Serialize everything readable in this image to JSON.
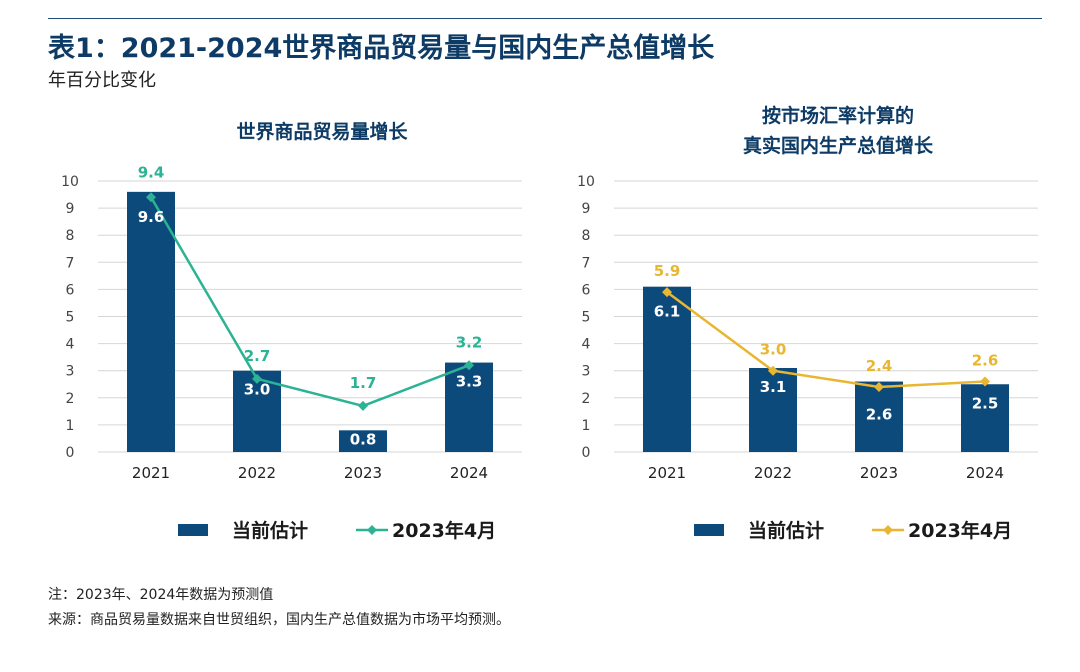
{
  "title": "表1：2021-2024世界商品贸易量与国内生产总值增长",
  "subtitle": "年百分比变化",
  "colors": {
    "bar": "#0d4a7c",
    "line_left": "#2bb394",
    "line_right": "#e8b630",
    "grid": "#d6d6d6",
    "axis_text": "#444444"
  },
  "chart_data": [
    {
      "type": "bar",
      "title_lines": [
        "世界商品贸易量增长"
      ],
      "categories": [
        "2021",
        "2022",
        "2023",
        "2024"
      ],
      "ylim": [
        0,
        10
      ],
      "yticks": [
        "0",
        "1",
        "2",
        "3",
        "4",
        "5",
        "6",
        "7",
        "8",
        "9",
        "10"
      ],
      "series": [
        {
          "name": "当前估计",
          "kind": "bar",
          "values": [
            9.6,
            3.0,
            0.8,
            3.3
          ],
          "labels": [
            "9.6",
            "3.0",
            "0.8",
            "3.3"
          ]
        },
        {
          "name": "2023年4月",
          "kind": "line",
          "values": [
            9.4,
            2.7,
            1.7,
            3.2
          ],
          "labels": [
            "9.4",
            "2.7",
            "1.7",
            "3.2"
          ]
        }
      ],
      "legend": [
        "当前估计",
        "2023年4月"
      ]
    },
    {
      "type": "bar",
      "title_lines": [
        "按市场汇率计算的",
        "真实国内生产总值增长"
      ],
      "categories": [
        "2021",
        "2022",
        "2023",
        "2024"
      ],
      "ylim": [
        0,
        10
      ],
      "yticks": [
        "0",
        "1",
        "2",
        "3",
        "4",
        "5",
        "6",
        "7",
        "8",
        "9",
        "10"
      ],
      "series": [
        {
          "name": "当前估计",
          "kind": "bar",
          "values": [
            6.1,
            3.1,
            2.6,
            2.5
          ],
          "labels": [
            "6.1",
            "3.1",
            "2.6",
            "2.5"
          ]
        },
        {
          "name": "2023年4月",
          "kind": "line",
          "values": [
            5.9,
            3.0,
            2.4,
            2.6
          ],
          "labels": [
            "5.9",
            "3.0",
            "2.4",
            "2.6"
          ]
        }
      ],
      "legend": [
        "当前估计",
        "2023年4月"
      ]
    }
  ],
  "notes": {
    "note": "注：2023年、2024年数据为预测值",
    "source": "来源：商品贸易量数据来自世贸组织，国内生产总值数据为市场平均预测。"
  }
}
